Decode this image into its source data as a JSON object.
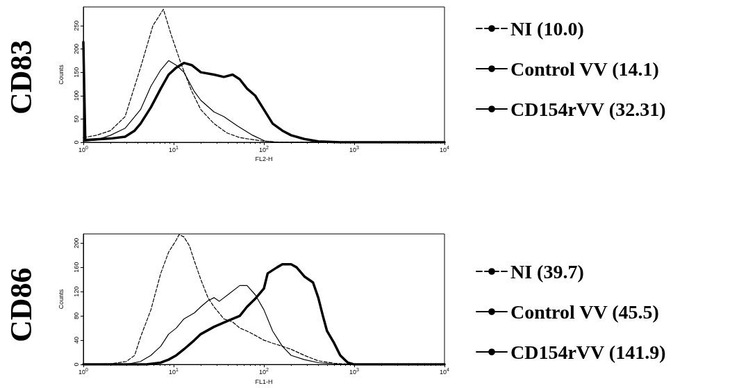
{
  "chart_data": [
    {
      "type": "line",
      "title": "CD83",
      "xlabel": "FL2-H",
      "ylabel": "Counts",
      "log": "x",
      "xlim": [
        1,
        10000
      ],
      "xticks": [
        {
          "value": 1,
          "label": "10$^{0}$"
        },
        {
          "value": 10,
          "label": "10$^{1}$"
        },
        {
          "value": 100,
          "label": "10$^{2}$"
        },
        {
          "value": 1000,
          "label": "10$^{3}$"
        },
        {
          "value": 10000,
          "label": "10$^{4}$"
        }
      ],
      "ylim": [
        0,
        290
      ],
      "yticks": [
        0,
        50,
        100,
        150,
        200,
        250
      ],
      "grid": false,
      "legend": "right",
      "marker": "none",
      "series": [
        {
          "name": "NI (10.0)",
          "color": "#000000",
          "line_style": "dashed",
          "x": [
            1,
            1.4,
            2,
            2.9,
            4.3,
            5.9,
            7.7,
            9.4,
            12,
            15.8,
            20,
            28,
            39,
            54,
            102,
            150,
            10000
          ],
          "values": [
            10,
            15,
            25,
            55,
            160,
            250,
            285,
            230,
            170,
            110,
            70,
            40,
            20,
            10,
            2,
            0,
            0
          ]
        },
        {
          "name": "Control VV (14.1)",
          "color": "#000000",
          "line_style": "solid",
          "x": [
            1,
            1.4,
            2,
            2.9,
            4.3,
            5.6,
            7.2,
            8.8,
            10.7,
            13,
            16.8,
            20,
            28,
            36,
            51,
            75,
            102,
            142,
            10000
          ],
          "values": [
            2,
            5,
            15,
            30,
            70,
            120,
            155,
            175,
            165,
            150,
            110,
            90,
            65,
            55,
            35,
            15,
            3,
            0,
            0
          ]
        },
        {
          "name": "CD154rVV (32.31)",
          "color": "#000000",
          "line_style": "solid",
          "x": [
            1,
            1.05,
            2,
            2.9,
            3.7,
            4.3,
            5.6,
            7.2,
            8.8,
            10.7,
            13,
            16,
            20,
            28,
            36,
            45,
            54,
            65,
            80,
            100,
            125,
            160,
            200,
            280,
            400,
            700,
            10000
          ],
          "values": [
            215,
            5,
            8,
            12,
            25,
            40,
            75,
            115,
            145,
            160,
            170,
            165,
            150,
            145,
            140,
            145,
            135,
            115,
            100,
            70,
            40,
            25,
            15,
            7,
            2,
            0,
            0
          ]
        }
      ]
    },
    {
      "type": "line",
      "title": "CD86",
      "xlabel": "FL1-H",
      "ylabel": "Counts",
      "log": "x",
      "xlim": [
        1,
        10000
      ],
      "xticks": [
        {
          "value": 1,
          "label": "10$^{0}$"
        },
        {
          "value": 10,
          "label": "10$^{1}$"
        },
        {
          "value": 100,
          "label": "10$^{2}$"
        },
        {
          "value": 1000,
          "label": "10$^{3}$"
        },
        {
          "value": 10000,
          "label": "10$^{4}$"
        }
      ],
      "ylim": [
        0,
        215
      ],
      "yticks": [
        0,
        40,
        80,
        120,
        160,
        200
      ],
      "grid": false,
      "legend": "right",
      "marker": "none",
      "series": [
        {
          "name": "NI (39.7)",
          "color": "#000000",
          "line_style": "dashed",
          "x": [
            1,
            2,
            3,
            3.7,
            4.3,
            5.6,
            7.2,
            8.8,
            10.7,
            11.5,
            13,
            15,
            17,
            20,
            24,
            28,
            36,
            45,
            54,
            65,
            80,
            100,
            125,
            160,
            200,
            280,
            400,
            600,
            1000,
            10000
          ],
          "values": [
            0,
            1,
            5,
            15,
            45,
            90,
            150,
            185,
            205,
            214,
            210,
            195,
            170,
            140,
            110,
            95,
            75,
            70,
            60,
            55,
            48,
            40,
            35,
            30,
            25,
            15,
            6,
            2,
            0,
            0
          ]
        },
        {
          "name": "Control VV (45.5)",
          "color": "#000000",
          "line_style": "solid",
          "x": [
            1,
            3,
            4.3,
            5.6,
            7.2,
            8.8,
            10.7,
            13,
            17,
            20,
            24,
            28,
            32,
            40,
            54,
            65,
            80,
            100,
            125,
            160,
            200,
            280,
            400,
            600,
            1000,
            10000
          ],
          "values": [
            0,
            0,
            5,
            15,
            30,
            50,
            60,
            75,
            85,
            95,
            105,
            110,
            104,
            115,
            130,
            130,
            115,
            90,
            55,
            30,
            15,
            8,
            3,
            1,
            0,
            0
          ]
        },
        {
          "name": "CD154rVV (141.9)",
          "color": "#000000",
          "line_style": "solid",
          "x": [
            1,
            5,
            7.2,
            8.8,
            10.7,
            13,
            17,
            20,
            28,
            40,
            54,
            65,
            80,
            100,
            110,
            140,
            160,
            200,
            230,
            280,
            350,
            400,
            450,
            500,
            600,
            700,
            850,
            1000,
            10000
          ],
          "values": [
            0,
            0,
            3,
            8,
            15,
            25,
            40,
            50,
            62,
            72,
            80,
            95,
            108,
            125,
            150,
            160,
            165,
            165,
            160,
            145,
            135,
            110,
            80,
            55,
            35,
            15,
            3,
            0,
            0
          ]
        }
      ]
    }
  ]
}
